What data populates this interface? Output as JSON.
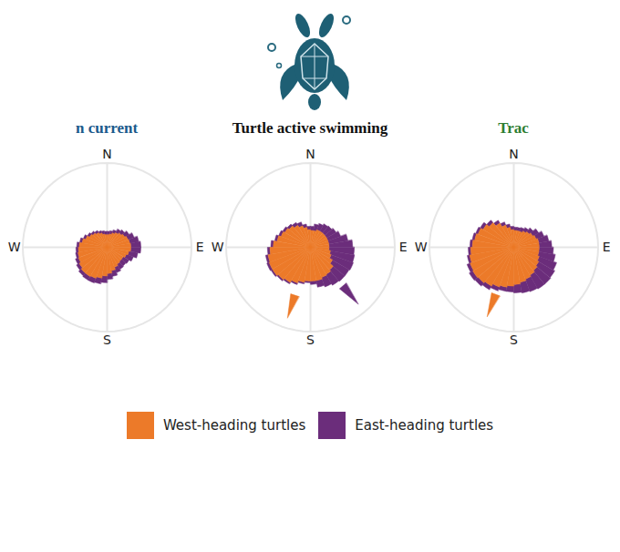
{
  "chart_data": [
    {
      "type": "rose",
      "title": "n current",
      "stacked": true,
      "xlim": [
        0,
        360
      ],
      "xticks": [
        {
          "value": 0,
          "label": "N"
        },
        {
          "value": 90,
          "label": "E"
        },
        {
          "value": 180,
          "label": "S"
        },
        {
          "value": 270,
          "label": "W"
        }
      ],
      "rlim": [
        0,
        100
      ],
      "bins": [
        0,
        10,
        20,
        30,
        40,
        50,
        60,
        70,
        80,
        90,
        100,
        110,
        120,
        130,
        140,
        150,
        160,
        170,
        180,
        190,
        200,
        210,
        220,
        230,
        240,
        250,
        260,
        270,
        280,
        290,
        300,
        310,
        320,
        330,
        340,
        350,
        360
      ],
      "series": [
        {
          "name": "West-heading turtles",
          "color": "#ec7a29",
          "mean_direction": null,
          "values": [
            15,
            16,
            18,
            20,
            22,
            24,
            26,
            27,
            28,
            28,
            26,
            24,
            22,
            22,
            23,
            25,
            28,
            31,
            34,
            37,
            39,
            40,
            40,
            38,
            36,
            35,
            34,
            33,
            30,
            27,
            24,
            22,
            20,
            18,
            16,
            15
          ]
        },
        {
          "name": "East-heading turtles",
          "color": "#6b2d7b",
          "mean_direction": null,
          "values": [
            4,
            4,
            4,
            5,
            5,
            6,
            8,
            11,
            12,
            12,
            11,
            9,
            8,
            7,
            7,
            7,
            7,
            7,
            8,
            7,
            6,
            5,
            4,
            4,
            4,
            3,
            3,
            3,
            3,
            3,
            3,
            3,
            3,
            3,
            4,
            4
          ]
        }
      ]
    },
    {
      "type": "rose",
      "title": "Turtle active swimming",
      "stacked": true,
      "legend": "bottom",
      "xlim": [
        0,
        360
      ],
      "xticks": [
        {
          "value": 0,
          "label": "N"
        },
        {
          "value": 90,
          "label": "E"
        },
        {
          "value": 180,
          "label": "S"
        },
        {
          "value": 270,
          "label": "W"
        }
      ],
      "rlim": [
        0,
        100
      ],
      "bins": [
        0,
        10,
        20,
        30,
        40,
        50,
        60,
        70,
        80,
        90,
        100,
        110,
        120,
        130,
        140,
        150,
        160,
        170,
        180,
        190,
        200,
        210,
        220,
        230,
        240,
        250,
        260,
        270,
        280,
        290,
        300,
        310,
        320,
        330,
        340,
        350,
        360
      ],
      "series": [
        {
          "name": "West-heading turtles",
          "color": "#ec7a29",
          "mean_direction": 198,
          "values": [
            20,
            20,
            22,
            22,
            22,
            22,
            22,
            22,
            22,
            22,
            24,
            26,
            30,
            35,
            37,
            38,
            40,
            40,
            40,
            42,
            45,
            48,
            50,
            52,
            52,
            51,
            48,
            44,
            40,
            37,
            35,
            33,
            30,
            27,
            24,
            21
          ]
        },
        {
          "name": "East-heading turtles",
          "color": "#6b2d7b",
          "mean_direction": 140,
          "values": [
            5,
            8,
            8,
            10,
            11,
            13,
            16,
            23,
            28,
            30,
            29,
            28,
            23,
            18,
            15,
            12,
            8,
            4,
            2,
            2,
            2,
            2,
            2,
            2,
            3,
            3,
            3,
            3,
            3,
            3,
            3,
            3,
            4,
            5,
            4,
            4
          ]
        }
      ]
    },
    {
      "type": "rose",
      "title": "Trac",
      "stacked": true,
      "xlim": [
        0,
        360
      ],
      "xticks": [
        {
          "value": 0,
          "label": "N"
        },
        {
          "value": 90,
          "label": "E"
        },
        {
          "value": 180,
          "label": "S"
        },
        {
          "value": 270,
          "label": "W"
        }
      ],
      "rlim": [
        0,
        100
      ],
      "bins": [
        0,
        10,
        20,
        30,
        40,
        50,
        60,
        70,
        80,
        90,
        100,
        110,
        120,
        130,
        140,
        150,
        160,
        170,
        180,
        190,
        200,
        210,
        220,
        230,
        240,
        250,
        260,
        270,
        280,
        290,
        300,
        310,
        320,
        330,
        340,
        350,
        360
      ],
      "series": [
        {
          "name": "West-heading turtles",
          "color": "#ec7a29",
          "mean_direction": 201,
          "values": [
            20,
            20,
            20,
            22,
            24,
            26,
            28,
            30,
            30,
            30,
            30,
            32,
            34,
            36,
            38,
            40,
            42,
            44,
            46,
            48,
            50,
            53,
            55,
            56,
            55,
            53,
            51,
            49,
            47,
            45,
            42,
            38,
            33,
            28,
            24,
            21
          ]
        },
        {
          "name": "East-heading turtles",
          "color": "#6b2d7b",
          "mean_direction": null,
          "values": [
            4,
            4,
            5,
            5,
            6,
            8,
            10,
            12,
            15,
            17,
            20,
            22,
            22,
            21,
            19,
            16,
            13,
            10,
            7,
            5,
            5,
            5,
            5,
            5,
            4,
            3,
            3,
            3,
            3,
            3,
            4,
            4,
            4,
            4,
            4,
            4
          ]
        }
      ]
    }
  ]
}
